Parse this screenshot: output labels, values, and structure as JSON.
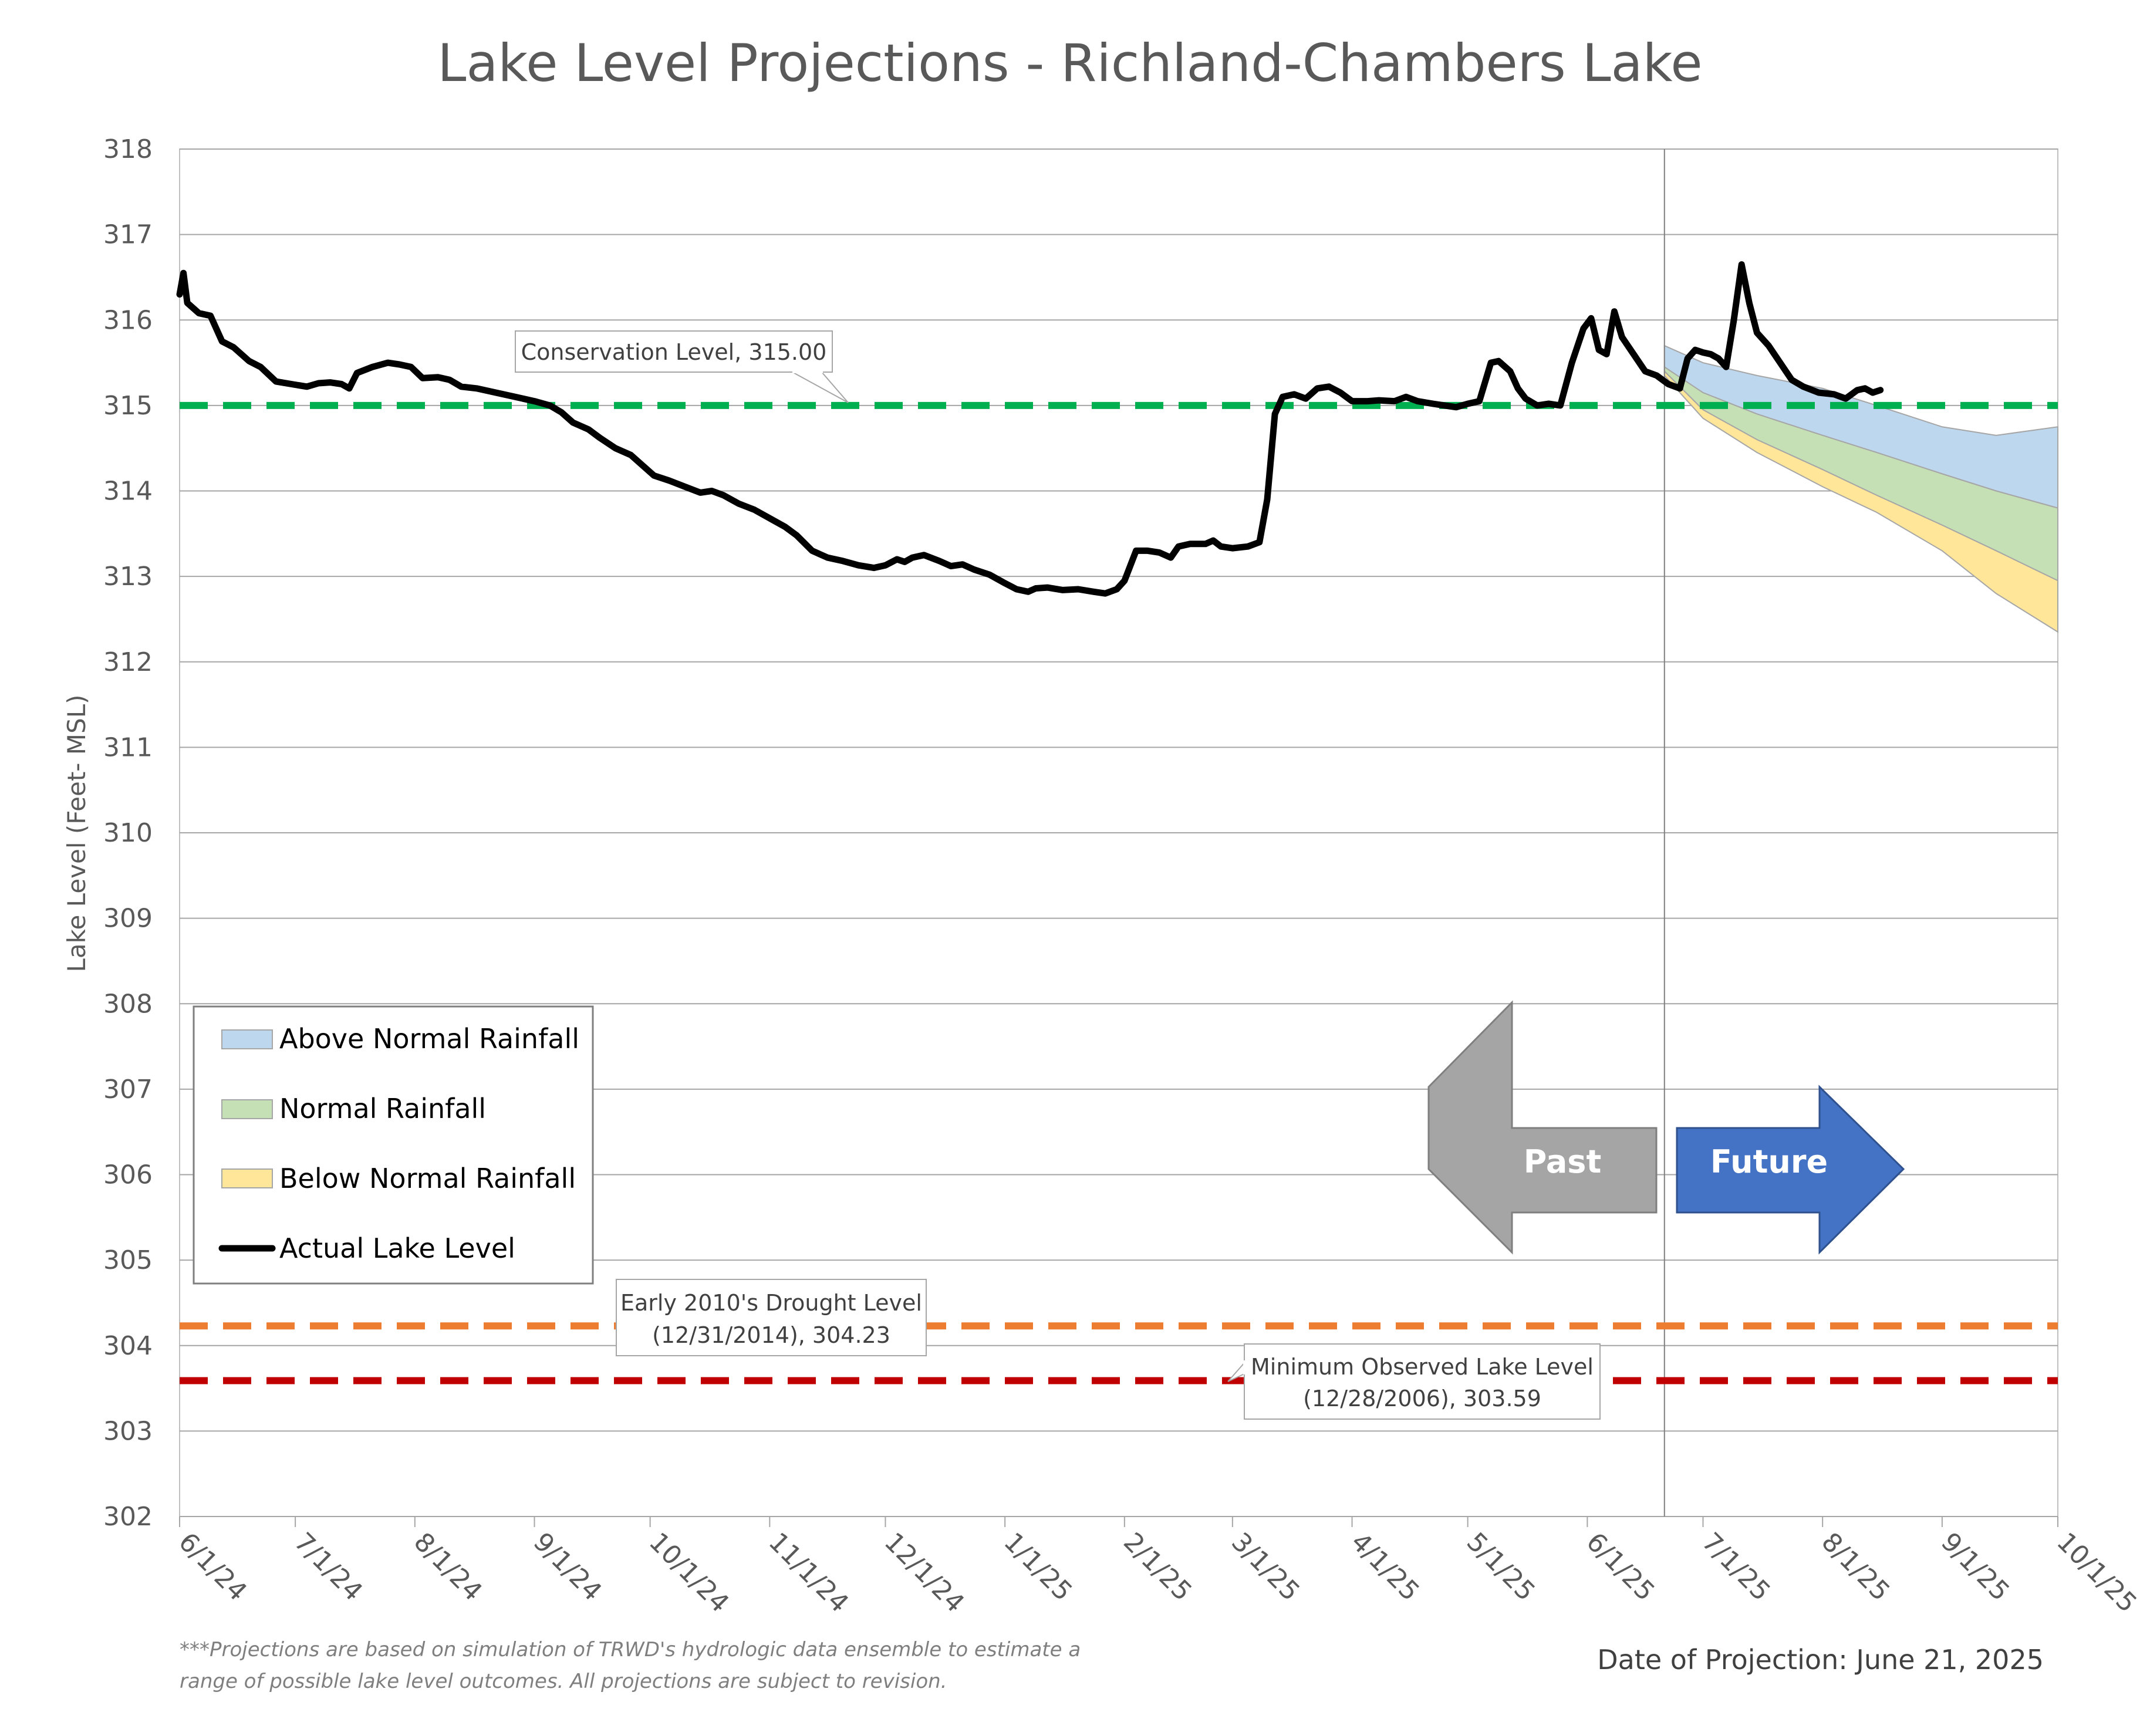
{
  "chart_data": {
    "type": "line",
    "title": "Lake Level Projections - Richland-Chambers Lake",
    "ylabel": "Lake Level (Feet- MSL)",
    "xlabel": "",
    "ylim": [
      302,
      318
    ],
    "y_ticks": [
      "302",
      "303",
      "304",
      "305",
      "306",
      "307",
      "308",
      "309",
      "310",
      "311",
      "312",
      "313",
      "314",
      "315",
      "316",
      "317",
      "318"
    ],
    "x_ticks": [
      "6/1/24",
      "7/1/24",
      "8/1/24",
      "9/1/24",
      "10/1/24",
      "11/1/24",
      "12/1/24",
      "1/1/25",
      "2/1/25",
      "3/1/25",
      "4/1/25",
      "5/1/25",
      "6/1/25",
      "7/1/25",
      "8/1/25",
      "9/1/25",
      "10/1/25"
    ],
    "x_range": [
      "2024-06-01",
      "2025-10-01"
    ],
    "grid": "horizontal",
    "legend_placement": "lower-left",
    "legend": [
      {
        "label": "Above Normal Rainfall",
        "color": "#bdd7ee",
        "kind": "area"
      },
      {
        "label": "Normal Rainfall",
        "color": "#c5e0b4",
        "kind": "area"
      },
      {
        "label": "Below Normal Rainfall",
        "color": "#ffe699",
        "kind": "area"
      },
      {
        "label": "Actual Lake Level",
        "color": "#000000",
        "kind": "line"
      }
    ],
    "reference_lines": [
      {
        "label": "Conservation Level, 315.00",
        "value": 315.0,
        "color": "#00b050"
      },
      {
        "label_line1": "Early 2010's Drought Level",
        "label_line2": "(12/31/2014), 304.23",
        "value": 304.23,
        "color": "#ed7d31"
      },
      {
        "label_line1": "Minimum Observed Lake Level",
        "label_line2": "(12/28/2006), 303.59",
        "value": 303.59,
        "color": "#c00000"
      }
    ],
    "projection_date": "2025-06-21",
    "actual_level": [
      [
        "2024-06-01",
        316.3
      ],
      [
        "2024-06-02",
        316.55
      ],
      [
        "2024-06-03",
        316.2
      ],
      [
        "2024-06-06",
        316.08
      ],
      [
        "2024-06-09",
        316.05
      ],
      [
        "2024-06-12",
        315.75
      ],
      [
        "2024-06-15",
        315.68
      ],
      [
        "2024-06-19",
        315.52
      ],
      [
        "2024-06-22",
        315.45
      ],
      [
        "2024-06-26",
        315.28
      ],
      [
        "2024-06-30",
        315.25
      ],
      [
        "2024-07-04",
        315.22
      ],
      [
        "2024-07-07",
        315.26
      ],
      [
        "2024-07-10",
        315.27
      ],
      [
        "2024-07-13",
        315.25
      ],
      [
        "2024-07-15",
        315.2
      ],
      [
        "2024-07-17",
        315.38
      ],
      [
        "2024-07-21",
        315.45
      ],
      [
        "2024-07-25",
        315.5
      ],
      [
        "2024-07-28",
        315.48
      ],
      [
        "2024-07-31",
        315.45
      ],
      [
        "2024-08-03",
        315.32
      ],
      [
        "2024-08-07",
        315.33
      ],
      [
        "2024-08-10",
        315.3
      ],
      [
        "2024-08-13",
        315.22
      ],
      [
        "2024-08-17",
        315.2
      ],
      [
        "2024-08-22",
        315.15
      ],
      [
        "2024-08-27",
        315.1
      ],
      [
        "2024-09-01",
        315.05
      ],
      [
        "2024-09-05",
        315.0
      ],
      [
        "2024-09-08",
        314.92
      ],
      [
        "2024-09-11",
        314.8
      ],
      [
        "2024-09-15",
        314.72
      ],
      [
        "2024-09-18",
        314.62
      ],
      [
        "2024-09-22",
        314.5
      ],
      [
        "2024-09-26",
        314.42
      ],
      [
        "2024-09-29",
        314.3
      ],
      [
        "2024-10-02",
        314.18
      ],
      [
        "2024-10-06",
        314.12
      ],
      [
        "2024-10-10",
        314.05
      ],
      [
        "2024-10-14",
        313.98
      ],
      [
        "2024-10-17",
        314.0
      ],
      [
        "2024-10-20",
        313.95
      ],
      [
        "2024-10-24",
        313.85
      ],
      [
        "2024-10-28",
        313.78
      ],
      [
        "2024-11-01",
        313.68
      ],
      [
        "2024-11-05",
        313.58
      ],
      [
        "2024-11-08",
        313.48
      ],
      [
        "2024-11-12",
        313.3
      ],
      [
        "2024-11-16",
        313.22
      ],
      [
        "2024-11-20",
        313.18
      ],
      [
        "2024-11-24",
        313.13
      ],
      [
        "2024-11-28",
        313.1
      ],
      [
        "2024-12-01",
        313.13
      ],
      [
        "2024-12-04",
        313.2
      ],
      [
        "2024-12-06",
        313.17
      ],
      [
        "2024-12-08",
        313.22
      ],
      [
        "2024-12-11",
        313.25
      ],
      [
        "2024-12-15",
        313.18
      ],
      [
        "2024-12-18",
        313.12
      ],
      [
        "2024-12-21",
        313.14
      ],
      [
        "2024-12-24",
        313.08
      ],
      [
        "2024-12-28",
        313.02
      ],
      [
        "2025-01-01",
        312.92
      ],
      [
        "2025-01-04",
        312.85
      ],
      [
        "2025-01-07",
        312.82
      ],
      [
        "2025-01-09",
        312.86
      ],
      [
        "2025-01-12",
        312.87
      ],
      [
        "2025-01-16",
        312.84
      ],
      [
        "2025-01-20",
        312.85
      ],
      [
        "2025-01-24",
        312.82
      ],
      [
        "2025-01-27",
        312.8
      ],
      [
        "2025-01-30",
        312.85
      ],
      [
        "2025-02-01",
        312.95
      ],
      [
        "2025-02-04",
        313.3
      ],
      [
        "2025-02-07",
        313.3
      ],
      [
        "2025-02-10",
        313.28
      ],
      [
        "2025-02-13",
        313.22
      ],
      [
        "2025-02-15",
        313.35
      ],
      [
        "2025-02-18",
        313.38
      ],
      [
        "2025-02-22",
        313.38
      ],
      [
        "2025-02-24",
        313.42
      ],
      [
        "2025-02-26",
        313.35
      ],
      [
        "2025-03-01",
        313.33
      ],
      [
        "2025-03-05",
        313.35
      ],
      [
        "2025-03-08",
        313.4
      ],
      [
        "2025-03-10",
        313.9
      ],
      [
        "2025-03-12",
        314.9
      ],
      [
        "2025-03-14",
        315.1
      ],
      [
        "2025-03-17",
        315.13
      ],
      [
        "2025-03-20",
        315.08
      ],
      [
        "2025-03-23",
        315.2
      ],
      [
        "2025-03-26",
        315.22
      ],
      [
        "2025-03-29",
        315.15
      ],
      [
        "2025-04-01",
        315.05
      ],
      [
        "2025-04-05",
        315.05
      ],
      [
        "2025-04-08",
        315.06
      ],
      [
        "2025-04-12",
        315.05
      ],
      [
        "2025-04-15",
        315.1
      ],
      [
        "2025-04-18",
        315.05
      ],
      [
        "2025-04-22",
        315.02
      ],
      [
        "2025-04-25",
        315.0
      ],
      [
        "2025-04-28",
        314.98
      ],
      [
        "2025-05-01",
        315.02
      ],
      [
        "2025-05-04",
        315.05
      ],
      [
        "2025-05-07",
        315.5
      ],
      [
        "2025-05-09",
        315.52
      ],
      [
        "2025-05-12",
        315.4
      ],
      [
        "2025-05-14",
        315.2
      ],
      [
        "2025-05-16",
        315.08
      ],
      [
        "2025-05-19",
        315.0
      ],
      [
        "2025-05-22",
        315.02
      ],
      [
        "2025-05-25",
        315.0
      ],
      [
        "2025-05-28",
        315.5
      ],
      [
        "2025-05-31",
        315.9
      ],
      [
        "2025-06-02",
        316.02
      ],
      [
        "2025-06-04",
        315.65
      ],
      [
        "2025-06-06",
        315.6
      ],
      [
        "2025-06-08",
        316.1
      ],
      [
        "2025-06-10",
        315.8
      ],
      [
        "2025-06-13",
        315.6
      ],
      [
        "2025-06-16",
        315.4
      ],
      [
        "2025-06-19",
        315.35
      ],
      [
        "2025-06-22",
        315.25
      ],
      [
        "2025-06-25",
        315.2
      ],
      [
        "2025-06-27",
        315.55
      ],
      [
        "2025-06-29",
        315.65
      ],
      [
        "2025-07-01",
        315.62
      ],
      [
        "2025-07-03",
        315.6
      ],
      [
        "2025-07-05",
        315.55
      ],
      [
        "2025-07-07",
        315.45
      ],
      [
        "2025-07-09",
        316.0
      ],
      [
        "2025-07-11",
        316.65
      ],
      [
        "2025-07-13",
        316.2
      ],
      [
        "2025-07-15",
        315.85
      ],
      [
        "2025-07-18",
        315.7
      ],
      [
        "2025-07-21",
        315.5
      ],
      [
        "2025-07-24",
        315.3
      ],
      [
        "2025-07-27",
        315.22
      ],
      [
        "2025-07-31",
        315.15
      ],
      [
        "2025-08-04",
        315.13
      ],
      [
        "2025-08-07",
        315.08
      ],
      [
        "2025-08-10",
        315.18
      ],
      [
        "2025-08-12",
        315.2
      ],
      [
        "2025-08-14",
        315.15
      ],
      [
        "2025-08-16",
        315.18
      ]
    ],
    "projections": {
      "x": [
        "2025-06-21",
        "2025-07-01",
        "2025-07-15",
        "2025-08-01",
        "2025-08-15",
        "2025-09-01",
        "2025-09-15",
        "2025-10-01"
      ],
      "above_normal_upper": [
        315.7,
        315.5,
        315.35,
        315.2,
        315.0,
        314.75,
        314.65,
        314.75
      ],
      "above_normal_lower": [
        315.45,
        315.15,
        314.9,
        314.65,
        314.45,
        314.2,
        314.0,
        313.8
      ],
      "normal_lower": [
        315.4,
        314.95,
        314.6,
        314.25,
        313.95,
        313.6,
        313.3,
        312.95
      ],
      "below_normal_lower": [
        315.35,
        314.85,
        314.45,
        314.05,
        313.75,
        313.3,
        312.8,
        312.35
      ]
    }
  },
  "arrows": {
    "past": "Past",
    "future": "Future"
  },
  "footnote": {
    "line1": "***Projections are based on simulation of TRWD's hydrologic data ensemble to estimate a",
    "line2": "range of possible lake level outcomes.  All projections are subject to revision."
  },
  "projection_label": "Date of Projection: June 21, 2025"
}
